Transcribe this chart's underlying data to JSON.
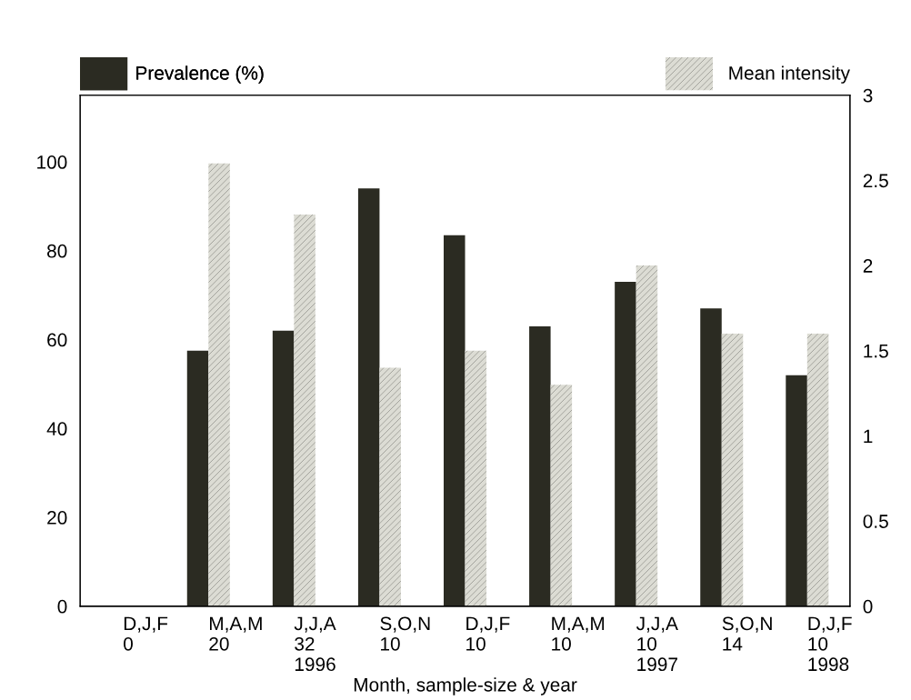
{
  "chart_data": {
    "type": "bar",
    "xlabel": "Month, sample-size & year",
    "categories": [
      "D,J,F\n0",
      "M,A,M\n20",
      "J,J,A\n32\n1996",
      "S,O,N\n10",
      "D,J,F\n10",
      "M,A,M\n10",
      "J,J,A\n10\n1997",
      "S,O,N\n14",
      "D,J,F\n10\n1998"
    ],
    "series": [
      {
        "name": "Prevalence (%)",
        "color": "#2b2b22",
        "values": [
          null,
          57.5,
          62,
          94,
          83.5,
          63,
          73,
          67,
          52
        ]
      },
      {
        "name": "Mean intensity",
        "color": "#dcdcd4",
        "axis": "y2",
        "values": [
          null,
          2.6,
          2.3,
          1.4,
          1.5,
          1.3,
          2.0,
          1.6,
          1.6
        ]
      }
    ],
    "ylim": [
      0,
      115
    ],
    "yticks": [
      0,
      20,
      40,
      60,
      80,
      100
    ],
    "y2lim": [
      0,
      3
    ],
    "y2ticks": [
      0,
      0.5,
      1,
      1.5,
      2,
      2.5,
      3
    ],
    "legend": "top",
    "grid": false
  }
}
